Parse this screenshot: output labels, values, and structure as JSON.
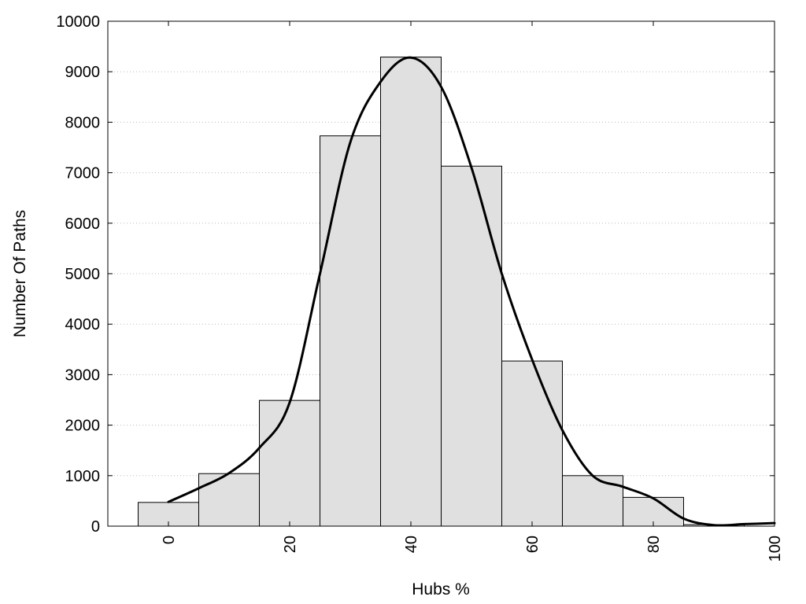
{
  "chart_data": {
    "type": "bar",
    "xlabel": "Hubs %",
    "ylabel": "Number Of Paths",
    "xlim": [
      -10,
      100
    ],
    "ylim": [
      0,
      10000
    ],
    "grid": true,
    "x_ticks": [
      0,
      20,
      40,
      60,
      80,
      100
    ],
    "y_ticks": [
      0,
      1000,
      2000,
      3000,
      4000,
      5000,
      6000,
      7000,
      8000,
      9000,
      10000
    ],
    "bin_width": 10,
    "bins": [
      {
        "x": 0,
        "value": 470
      },
      {
        "x": 10,
        "value": 1040
      },
      {
        "x": 20,
        "value": 2490
      },
      {
        "x": 30,
        "value": 7730
      },
      {
        "x": 40,
        "value": 9290
      },
      {
        "x": 50,
        "value": 7130
      },
      {
        "x": 60,
        "value": 3270
      },
      {
        "x": 70,
        "value": 1000
      },
      {
        "x": 80,
        "value": 570
      },
      {
        "x": 90,
        "value": 30
      }
    ],
    "series": [
      {
        "type": "line",
        "x": [
          0,
          5,
          10,
          15,
          20,
          25,
          30,
          35,
          40,
          45,
          50,
          55,
          60,
          65,
          70,
          75,
          80,
          85,
          90,
          95,
          100
        ],
        "values": [
          480,
          750,
          1050,
          1550,
          2450,
          5000,
          7600,
          8800,
          9280,
          8700,
          7100,
          5000,
          3300,
          1900,
          1000,
          780,
          550,
          150,
          20,
          40,
          60
        ]
      }
    ]
  }
}
